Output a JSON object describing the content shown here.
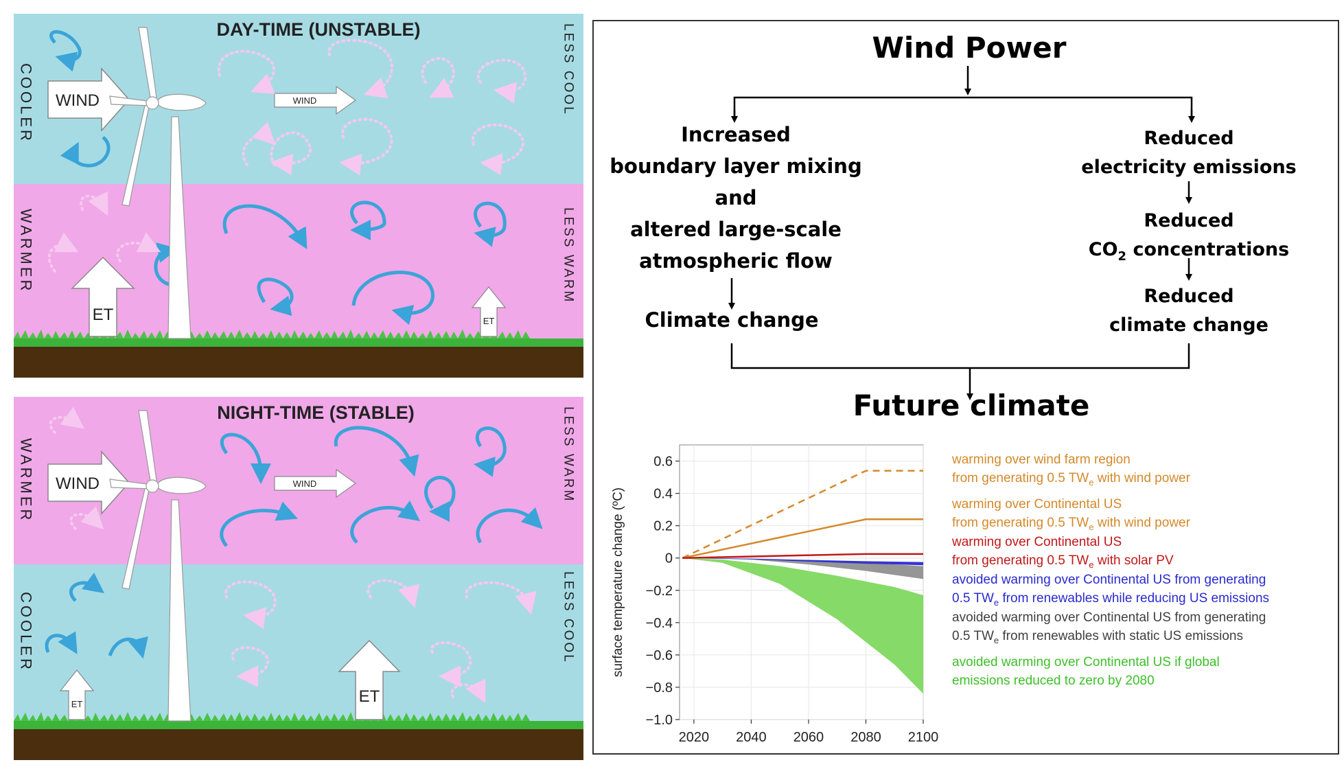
{
  "left_panel": {
    "day": {
      "title": "DAY-TIME (UNSTABLE)",
      "left_top_vertical": "COOLER",
      "left_bottom_vertical": "WARMER",
      "right_top_vertical": "LESS COOL",
      "right_bottom_vertical": "LESS WARM",
      "wind_big": "WIND",
      "wind_small": "WIND",
      "et_big": "ET",
      "et_small": "ET"
    },
    "night": {
      "title": "NIGHT-TIME (STABLE)",
      "left_top_vertical": "WARMER",
      "left_bottom_vertical": "COOLER",
      "right_top_vertical": "LESS WARM",
      "right_bottom_vertical": "LESS COOL",
      "wind_big": "WIND",
      "wind_small": "WIND",
      "et_big": "ET",
      "et_small": "ET"
    },
    "colors": {
      "cool_band": "#a6dbe4",
      "warm_band": "#f0a8e8",
      "arrow": "#3ba4d8",
      "grass": "#3cb43c",
      "soil": "#4a2e0e"
    }
  },
  "flowchart": {
    "top": "Wind Power",
    "left_lines": [
      "Increased",
      "boundary layer mixing",
      "and",
      "altered large-scale",
      "atmospheric flow"
    ],
    "left_result": "Climate change",
    "right_1": [
      "Reduced",
      "electricity emissions"
    ],
    "right_2_line1": "Reduced",
    "right_2_co": "CO",
    "right_2_sub": "2",
    "right_2_rest": " concentrations",
    "right_3": [
      "Reduced",
      "climate change"
    ],
    "bottom": "Future climate"
  },
  "chart_data": {
    "type": "line",
    "ylabel": "surface temperature change (ºC)",
    "xlabel": "",
    "xlim": [
      2015,
      2100
    ],
    "ylim": [
      -1.0,
      0.7
    ],
    "x_ticks": [
      "2020",
      "2040",
      "2060",
      "2080",
      "2100"
    ],
    "y_ticks": [
      "0.6",
      "0.4",
      "0.2",
      "0",
      "−0.2",
      "−0.4",
      "−0.6",
      "−0.8",
      "−1.0"
    ],
    "grid": true,
    "series": [
      {
        "color": "#d4892a",
        "style": "dashed",
        "x": [
          2016,
          2080,
          2100
        ],
        "y": [
          0.0,
          0.54,
          0.54
        ]
      },
      {
        "color": "#d4892a",
        "style": "solid",
        "x": [
          2016,
          2080,
          2100
        ],
        "y": [
          0.0,
          0.24,
          0.24
        ]
      },
      {
        "color": "#c01818",
        "style": "solid",
        "x": [
          2016,
          2080,
          2100
        ],
        "y": [
          0.0,
          0.025,
          0.025
        ]
      }
    ],
    "bands": [
      {
        "color": "#80d860",
        "x": [
          2016,
          2030,
          2050,
          2070,
          2090,
          2100
        ],
        "upper": [
          0,
          -0.01,
          -0.05,
          -0.11,
          -0.18,
          -0.23
        ],
        "lower": [
          0,
          -0.03,
          -0.16,
          -0.38,
          -0.66,
          -0.84
        ]
      },
      {
        "color": "#909090",
        "x": [
          2016,
          2040,
          2060,
          2080,
          2100
        ],
        "upper": [
          0,
          -0.005,
          -0.015,
          -0.03,
          -0.05
        ],
        "lower": [
          0,
          -0.01,
          -0.04,
          -0.08,
          -0.13
        ]
      },
      {
        "color": "#2a2ad0",
        "x": [
          2016,
          2040,
          2060,
          2080,
          2100
        ],
        "upper": [
          0,
          -0.004,
          -0.012,
          -0.02,
          -0.025
        ],
        "lower": [
          0,
          -0.008,
          -0.022,
          -0.035,
          -0.045
        ]
      }
    ],
    "legend": [
      {
        "color": "#d4892a",
        "lines": [
          [
            "warming over wind farm region"
          ],
          [
            "from generating 0.5 TW",
            "e",
            " with wind power"
          ]
        ]
      },
      {
        "color": "#d4892a",
        "lines": [
          [
            "warming over Continental US"
          ],
          [
            "from generating 0.5 TW",
            "e",
            " with wind power"
          ]
        ]
      },
      {
        "color": "#c01818",
        "lines": [
          [
            "warming over Continental US"
          ],
          [
            "from generating 0.5 TW",
            "e",
            " with solar PV"
          ]
        ]
      },
      {
        "color": "#2a2ad0",
        "lines": [
          [
            "avoided warming over Continental US from generating"
          ],
          [
            "0.5 TW",
            "e",
            " from renewables while reducing US emissions"
          ]
        ]
      },
      {
        "color": "#404040",
        "lines": [
          [
            "avoided warming over Continental US from generating"
          ],
          [
            "0.5 TW",
            "e",
            " from renewables with static US emissions"
          ]
        ]
      },
      {
        "color": "#3cc028",
        "lines": [
          [
            "avoided warming over Continental US if global"
          ],
          [
            "emissions reduced to zero by 2080"
          ]
        ]
      }
    ]
  }
}
